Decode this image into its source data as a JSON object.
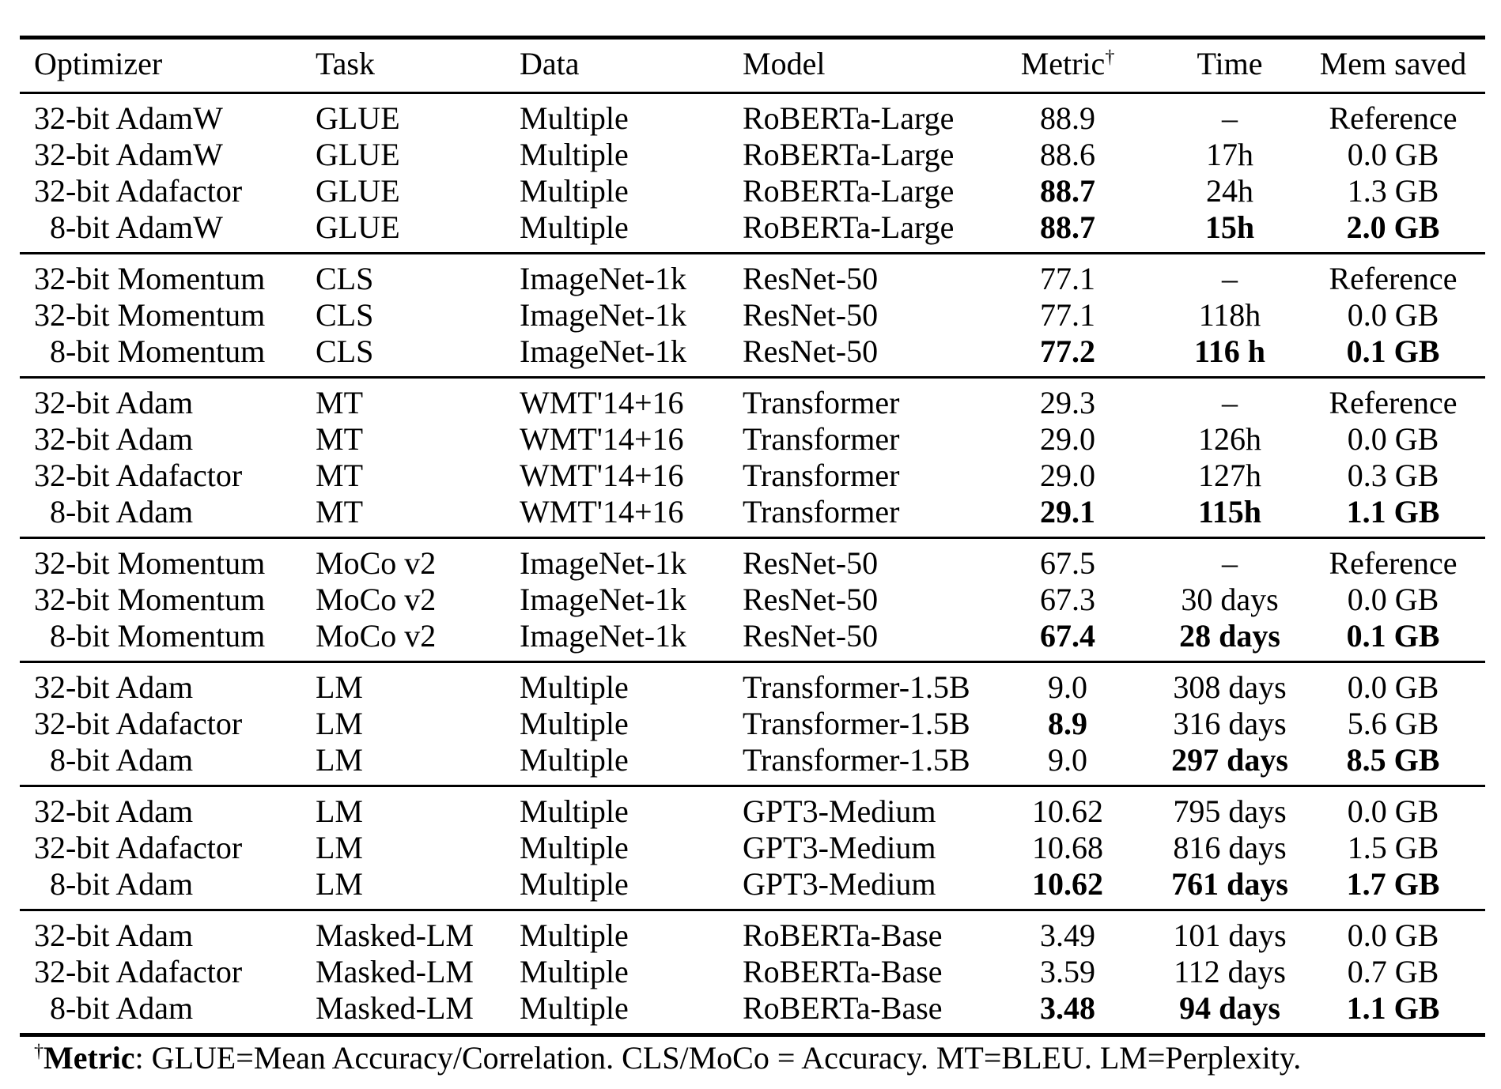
{
  "page": {
    "background_color": "#ffffff",
    "text_color": "#000000",
    "rule_color": "#000000"
  },
  "table": {
    "columns": [
      "Optimizer",
      "Task",
      "Data",
      "Model",
      "Metric",
      "Time",
      "Mem saved"
    ],
    "metric_dagger": "†",
    "groups": [
      {
        "rows": [
          {
            "cells": [
              "32-bit AdamW",
              "GLUE",
              "Multiple",
              "RoBERTa-Large",
              "88.9",
              "–",
              "Reference"
            ],
            "bold": []
          },
          {
            "cells": [
              "32-bit AdamW",
              "GLUE",
              "Multiple",
              "RoBERTa-Large",
              "88.6",
              "17h",
              "0.0 GB"
            ],
            "bold": []
          },
          {
            "cells": [
              "32-bit Adafactor",
              "GLUE",
              "Multiple",
              "RoBERTa-Large",
              "88.7",
              "24h",
              "1.3 GB"
            ],
            "bold": [
              4
            ]
          },
          {
            "cells": [
              "8-bit AdamW",
              "GLUE",
              "Multiple",
              "RoBERTa-Large",
              "88.7",
              "15h",
              "2.0 GB"
            ],
            "bold": [
              4,
              5,
              6
            ]
          }
        ]
      },
      {
        "rows": [
          {
            "cells": [
              "32-bit Momentum",
              "CLS",
              "ImageNet-1k",
              "ResNet-50",
              "77.1",
              "–",
              "Reference"
            ],
            "bold": []
          },
          {
            "cells": [
              "32-bit Momentum",
              "CLS",
              "ImageNet-1k",
              "ResNet-50",
              "77.1",
              "118h",
              "0.0 GB"
            ],
            "bold": []
          },
          {
            "cells": [
              "8-bit Momentum",
              "CLS",
              "ImageNet-1k",
              "ResNet-50",
              "77.2",
              "116 h",
              "0.1 GB"
            ],
            "bold": [
              4,
              5,
              6
            ]
          }
        ]
      },
      {
        "rows": [
          {
            "cells": [
              "32-bit Adam",
              "MT",
              "WMT'14+16",
              "Transformer",
              "29.3",
              "–",
              "Reference"
            ],
            "bold": []
          },
          {
            "cells": [
              "32-bit Adam",
              "MT",
              "WMT'14+16",
              "Transformer",
              "29.0",
              "126h",
              "0.0 GB"
            ],
            "bold": []
          },
          {
            "cells": [
              "32-bit Adafactor",
              "MT",
              "WMT'14+16",
              "Transformer",
              "29.0",
              "127h",
              "0.3 GB"
            ],
            "bold": []
          },
          {
            "cells": [
              "8-bit Adam",
              "MT",
              "WMT'14+16",
              "Transformer",
              "29.1",
              "115h",
              "1.1 GB"
            ],
            "bold": [
              4,
              5,
              6
            ]
          }
        ]
      },
      {
        "rows": [
          {
            "cells": [
              "32-bit Momentum",
              "MoCo v2",
              "ImageNet-1k",
              "ResNet-50",
              "67.5",
              "–",
              "Reference"
            ],
            "bold": []
          },
          {
            "cells": [
              "32-bit Momentum",
              "MoCo v2",
              "ImageNet-1k",
              "ResNet-50",
              "67.3",
              "30 days",
              "0.0 GB"
            ],
            "bold": []
          },
          {
            "cells": [
              "8-bit Momentum",
              "MoCo v2",
              "ImageNet-1k",
              "ResNet-50",
              "67.4",
              "28 days",
              "0.1 GB"
            ],
            "bold": [
              4,
              5,
              6
            ]
          }
        ]
      },
      {
        "rows": [
          {
            "cells": [
              "32-bit Adam",
              "LM",
              "Multiple",
              "Transformer-1.5B",
              "9.0",
              "308 days",
              "0.0 GB"
            ],
            "bold": []
          },
          {
            "cells": [
              "32-bit Adafactor",
              "LM",
              "Multiple",
              "Transformer-1.5B",
              "8.9",
              "316 days",
              "5.6 GB"
            ],
            "bold": [
              4
            ]
          },
          {
            "cells": [
              "8-bit Adam",
              "LM",
              "Multiple",
              "Transformer-1.5B",
              "9.0",
              "297 days",
              "8.5 GB"
            ],
            "bold": [
              5,
              6
            ]
          }
        ]
      },
      {
        "rows": [
          {
            "cells": [
              "32-bit Adam",
              "LM",
              "Multiple",
              "GPT3-Medium",
              "10.62",
              "795 days",
              "0.0 GB"
            ],
            "bold": []
          },
          {
            "cells": [
              "32-bit Adafactor",
              "LM",
              "Multiple",
              "GPT3-Medium",
              "10.68",
              "816 days",
              "1.5 GB"
            ],
            "bold": []
          },
          {
            "cells": [
              "8-bit Adam",
              "LM",
              "Multiple",
              "GPT3-Medium",
              "10.62",
              "761 days",
              "1.7 GB"
            ],
            "bold": [
              4,
              5,
              6
            ]
          }
        ]
      },
      {
        "rows": [
          {
            "cells": [
              "32-bit Adam",
              "Masked-LM",
              "Multiple",
              "RoBERTa-Base",
              "3.49",
              "101 days",
              "0.0 GB"
            ],
            "bold": []
          },
          {
            "cells": [
              "32-bit Adafactor",
              "Masked-LM",
              "Multiple",
              "RoBERTa-Base",
              "3.59",
              "112 days",
              "0.7 GB"
            ],
            "bold": []
          },
          {
            "cells": [
              "8-bit Adam",
              "Masked-LM",
              "Multiple",
              "RoBERTa-Base",
              "3.48",
              "94 days",
              "1.1 GB"
            ],
            "bold": [
              4,
              5,
              6
            ]
          }
        ]
      }
    ],
    "footnote": {
      "dagger": "†",
      "label": "Metric",
      "text": ": GLUE=Mean Accuracy/Correlation. CLS/MoCo = Accuracy. MT=BLEU. LM=Perplexity."
    }
  }
}
